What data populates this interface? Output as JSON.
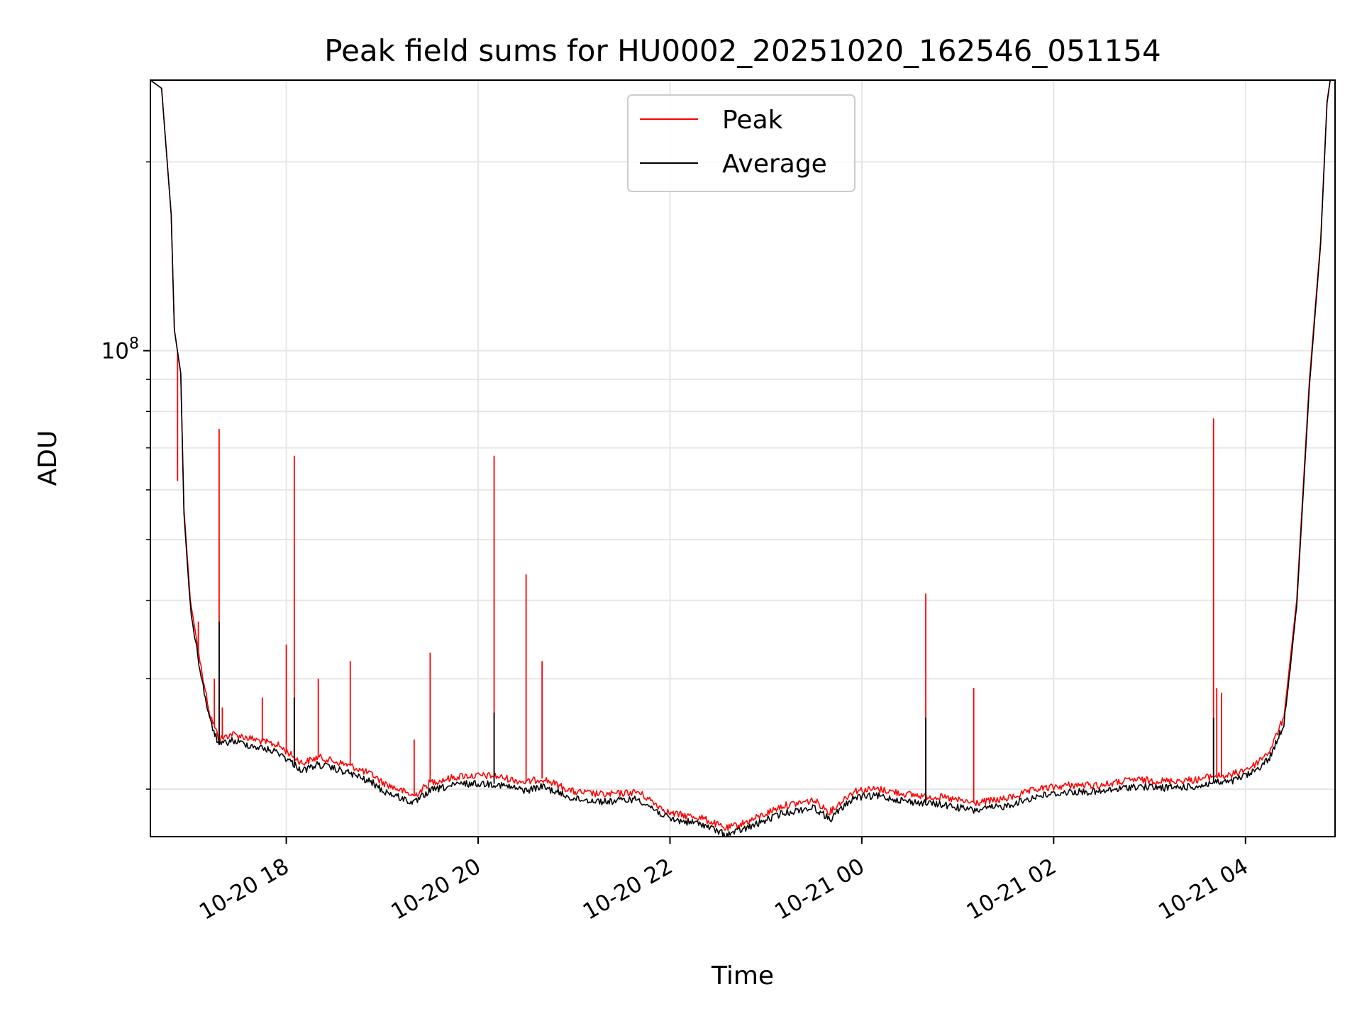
{
  "chart_data": {
    "type": "line",
    "title": "Peak field sums for HU0002_20251020_162546_051154",
    "xlabel": "Time",
    "ylabel": "ADU",
    "y_scale": "log",
    "ylim": [
      16800000,
      270000000
    ],
    "xlim": [
      "2025-10-20T16:35",
      "2025-10-21T04:56"
    ],
    "x_tick_labels": [
      "10-20 18",
      "10-20 20",
      "10-20 22",
      "10-21 00",
      "10-21 02",
      "10-21 04"
    ],
    "x_tick_values": [
      "2025-10-20T18:00",
      "2025-10-20T20:00",
      "2025-10-20T22:00",
      "2025-10-21T00:00",
      "2025-10-21T02:00",
      "2025-10-21T04:00"
    ],
    "y_tick_labels": [
      {
        "base": "10",
        "exp": "8"
      }
    ],
    "y_tick_values": [
      100000000
    ],
    "grid": true,
    "legend_position": "top-center",
    "series": [
      {
        "name": "Peak",
        "color": "#ff0000",
        "x": [
          "2025-10-20T16:35",
          "2025-10-20T16:42",
          "2025-10-20T16:48",
          "2025-10-20T16:50",
          "2025-10-20T16:54",
          "2025-10-20T16:56",
          "2025-10-20T17:00",
          "2025-10-20T17:06",
          "2025-10-20T17:12",
          "2025-10-20T17:18",
          "2025-10-20T17:26",
          "2025-10-20T17:40",
          "2025-10-20T17:55",
          "2025-10-20T18:05",
          "2025-10-20T18:10",
          "2025-10-20T18:20",
          "2025-10-20T18:40",
          "2025-10-20T18:55",
          "2025-10-20T19:00",
          "2025-10-20T19:20",
          "2025-10-20T19:30",
          "2025-10-20T19:50",
          "2025-10-20T20:10",
          "2025-10-20T20:30",
          "2025-10-20T20:40",
          "2025-10-20T21:00",
          "2025-10-20T21:20",
          "2025-10-20T21:40",
          "2025-10-20T22:00",
          "2025-10-20T22:20",
          "2025-10-20T22:35",
          "2025-10-20T22:50",
          "2025-10-20T23:10",
          "2025-10-20T23:30",
          "2025-10-20T23:40",
          "2025-10-20T23:55",
          "2025-10-21T00:10",
          "2025-10-21T00:30",
          "2025-10-21T00:50",
          "2025-10-21T01:10",
          "2025-10-21T01:30",
          "2025-10-21T01:50",
          "2025-10-21T02:10",
          "2025-10-21T02:30",
          "2025-10-21T02:50",
          "2025-10-21T03:10",
          "2025-10-21T03:30",
          "2025-10-21T03:40",
          "2025-10-21T03:50",
          "2025-10-21T04:05",
          "2025-10-21T04:15",
          "2025-10-21T04:24",
          "2025-10-21T04:32",
          "2025-10-21T04:40",
          "2025-10-21T04:47",
          "2025-10-21T04:51",
          "2025-10-21T04:53"
        ],
        "y": [
          270000000,
          262000000,
          165000000,
          108000000,
          92000000,
          56000000,
          40000000,
          32000000,
          26500000,
          24000000,
          24500000,
          24000000,
          23500000,
          22500000,
          22000000,
          22500000,
          21800000,
          21000000,
          20500000,
          19500000,
          20500000,
          21000000,
          21000000,
          20500000,
          20800000,
          19800000,
          19600000,
          19800000,
          18300000,
          18000000,
          17300000,
          17800000,
          18800000,
          19200000,
          18400000,
          19900000,
          20000000,
          19600000,
          19400000,
          19000000,
          19300000,
          20000000,
          20300000,
          20300000,
          20700000,
          20600000,
          20700000,
          21000000,
          21000000,
          21800000,
          23000000,
          26000000,
          40000000,
          90000000,
          150000000,
          250000000,
          270000000
        ],
        "spikes": [
          {
            "x": "2025-10-20T16:52",
            "y": 62000000
          },
          {
            "x": "2025-10-20T17:05",
            "y": 37000000
          },
          {
            "x": "2025-10-20T17:15",
            "y": 30000000
          },
          {
            "x": "2025-10-20T17:18",
            "y": 75000000
          },
          {
            "x": "2025-10-20T17:20",
            "y": 27000000
          },
          {
            "x": "2025-10-20T17:45",
            "y": 28000000
          },
          {
            "x": "2025-10-20T18:00",
            "y": 34000000
          },
          {
            "x": "2025-10-20T18:05",
            "y": 68000000
          },
          {
            "x": "2025-10-20T18:20",
            "y": 30000000
          },
          {
            "x": "2025-10-20T18:40",
            "y": 32000000
          },
          {
            "x": "2025-10-20T19:20",
            "y": 24000000
          },
          {
            "x": "2025-10-20T19:30",
            "y": 33000000
          },
          {
            "x": "2025-10-20T20:10",
            "y": 68000000
          },
          {
            "x": "2025-10-20T20:30",
            "y": 44000000
          },
          {
            "x": "2025-10-20T20:40",
            "y": 32000000
          },
          {
            "x": "2025-10-21T00:40",
            "y": 41000000
          },
          {
            "x": "2025-10-21T01:10",
            "y": 29000000
          },
          {
            "x": "2025-10-21T03:40",
            "y": 78000000
          },
          {
            "x": "2025-10-21T03:42",
            "y": 29000000
          },
          {
            "x": "2025-10-21T03:45",
            "y": 28500000
          }
        ]
      },
      {
        "name": "Average",
        "color": "#000000",
        "x": [
          "2025-10-20T16:35",
          "2025-10-20T16:42",
          "2025-10-20T16:48",
          "2025-10-20T16:50",
          "2025-10-20T16:54",
          "2025-10-20T16:56",
          "2025-10-20T17:00",
          "2025-10-20T17:06",
          "2025-10-20T17:12",
          "2025-10-20T17:18",
          "2025-10-20T17:26",
          "2025-10-20T17:40",
          "2025-10-20T17:55",
          "2025-10-20T18:05",
          "2025-10-20T18:10",
          "2025-10-20T18:20",
          "2025-10-20T18:40",
          "2025-10-20T18:55",
          "2025-10-20T19:00",
          "2025-10-20T19:20",
          "2025-10-20T19:30",
          "2025-10-20T19:50",
          "2025-10-20T20:10",
          "2025-10-20T20:30",
          "2025-10-20T20:40",
          "2025-10-20T21:00",
          "2025-10-20T21:20",
          "2025-10-20T21:40",
          "2025-10-20T22:00",
          "2025-10-20T22:20",
          "2025-10-20T22:35",
          "2025-10-20T22:50",
          "2025-10-20T23:10",
          "2025-10-20T23:30",
          "2025-10-20T23:40",
          "2025-10-20T23:55",
          "2025-10-21T00:10",
          "2025-10-21T00:30",
          "2025-10-21T00:50",
          "2025-10-21T01:10",
          "2025-10-21T01:30",
          "2025-10-21T01:50",
          "2025-10-21T02:10",
          "2025-10-21T02:30",
          "2025-10-21T02:50",
          "2025-10-21T03:10",
          "2025-10-21T03:30",
          "2025-10-21T03:40",
          "2025-10-21T03:50",
          "2025-10-21T04:05",
          "2025-10-21T04:15",
          "2025-10-21T04:24",
          "2025-10-21T04:32",
          "2025-10-21T04:40",
          "2025-10-21T04:47",
          "2025-10-21T04:51",
          "2025-10-21T04:53"
        ],
        "y": [
          270000000,
          262000000,
          165000000,
          108000000,
          92000000,
          55000000,
          39000000,
          31000000,
          25800000,
          23500000,
          23900000,
          23400000,
          22900000,
          21900000,
          21400000,
          21900000,
          21200000,
          20400000,
          19900000,
          19000000,
          19900000,
          20400000,
          20400000,
          19900000,
          20200000,
          19300000,
          19100000,
          19300000,
          17900000,
          17600000,
          16900000,
          17400000,
          18300000,
          18700000,
          17900000,
          19400000,
          19500000,
          19100000,
          18900000,
          18500000,
          18800000,
          19500000,
          19800000,
          19800000,
          20200000,
          20100000,
          20200000,
          20500000,
          20500000,
          21300000,
          22400000,
          25400000,
          39000000,
          88000000,
          148000000,
          248000000,
          270000000
        ],
        "spikes": [
          {
            "x": "2025-10-20T17:18",
            "y": 37000000
          },
          {
            "x": "2025-10-20T18:05",
            "y": 28000000
          },
          {
            "x": "2025-10-20T20:10",
            "y": 26500000
          },
          {
            "x": "2025-10-21T00:40",
            "y": 26000000
          },
          {
            "x": "2025-10-21T03:40",
            "y": 26000000
          }
        ]
      }
    ]
  }
}
